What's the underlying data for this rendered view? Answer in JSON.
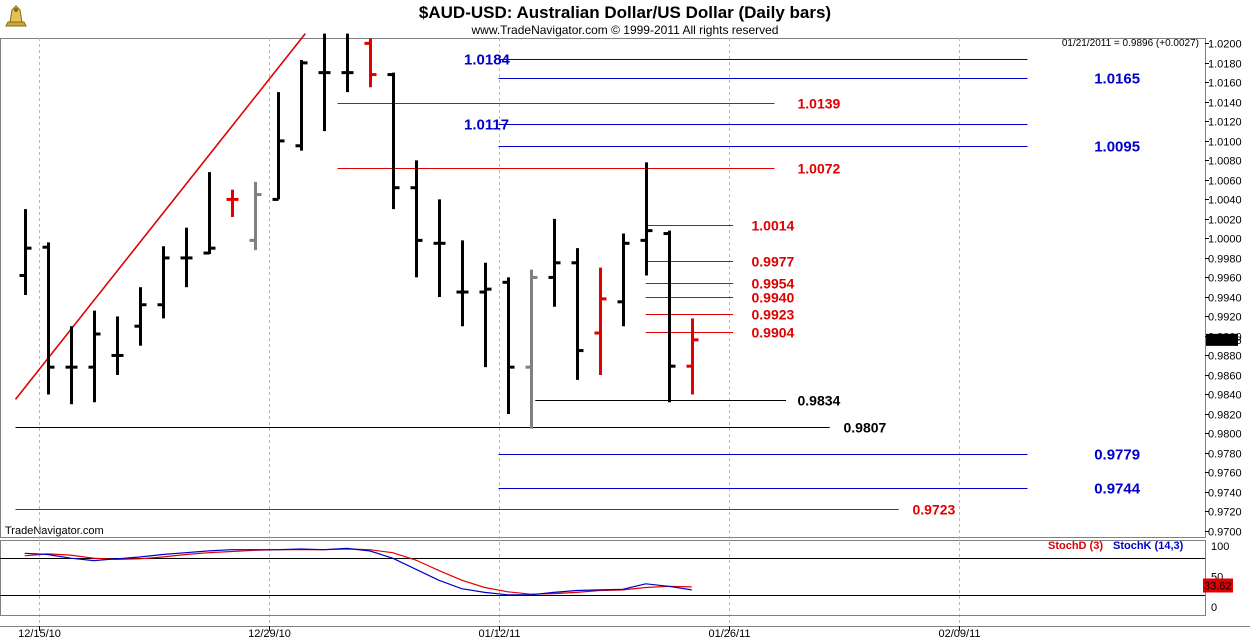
{
  "chart_data": {
    "type": "ohlc",
    "title": "$AUD-USD:  Australian Dollar/US Dollar  (Daily bars)",
    "subtitle": "www.TradeNavigator.com © 1999-2011 All rights reserved",
    "readout": "01/21/2011 = 0.9896 (+0.0027)",
    "watermark": "TradeNavigator.com",
    "last_price_label": "0.9896",
    "last_price": 0.9896,
    "ylim": [
      0.97,
      1.0205
    ],
    "yticks": [
      0.97,
      0.972,
      0.974,
      0.976,
      0.978,
      0.98,
      0.982,
      0.984,
      0.986,
      0.988,
      0.99,
      0.992,
      0.994,
      0.996,
      0.998,
      1.0,
      1.002,
      1.004,
      1.006,
      1.008,
      1.01,
      1.012,
      1.014,
      1.016,
      1.018,
      1.02
    ],
    "ytick_labels": [
      "0.9700",
      "0.9720",
      "0.9740",
      "0.9760",
      "0.9780",
      "0.9800",
      "0.9820",
      "0.9840",
      "0.9860",
      "0.9880",
      "0.9900",
      "0.9920",
      "0.9940",
      "0.9960",
      "0.9980",
      "1.0000",
      "1.0020",
      "1.0040",
      "1.0060",
      "1.0080",
      "1.0100",
      "1.0120",
      "1.0140",
      "1.0160",
      "1.0180",
      "1.0200"
    ],
    "x_range": [
      -1,
      59
    ],
    "date_ticks": [
      {
        "index": 0,
        "label": "12/15/10"
      },
      {
        "index": 10,
        "label": "12/29/10"
      },
      {
        "index": 20,
        "label": "01/12/11"
      },
      {
        "index": 30,
        "label": "01/26/11"
      },
      {
        "index": 40,
        "label": "02/09/11"
      }
    ],
    "bars": [
      {
        "i": -0.6,
        "o": 0.9962,
        "h": 1.003,
        "l": 0.9942,
        "c": 0.999,
        "color": "#000000"
      },
      {
        "i": 0.4,
        "o": 0.9991,
        "h": 0.9996,
        "l": 0.984,
        "c": 0.9868,
        "color": "#000000"
      },
      {
        "i": 1.4,
        "o": 0.9868,
        "h": 0.991,
        "l": 0.983,
        "c": 0.9868,
        "color": "#000000"
      },
      {
        "i": 2.4,
        "o": 0.9868,
        "h": 0.9926,
        "l": 0.9832,
        "c": 0.9902,
        "color": "#000000"
      },
      {
        "i": 3.4,
        "o": 0.988,
        "h": 0.992,
        "l": 0.986,
        "c": 0.988,
        "color": "#000000"
      },
      {
        "i": 4.4,
        "o": 0.991,
        "h": 0.995,
        "l": 0.989,
        "c": 0.9932,
        "color": "#000000"
      },
      {
        "i": 5.4,
        "o": 0.9932,
        "h": 0.9992,
        "l": 0.9918,
        "c": 0.998,
        "color": "#000000"
      },
      {
        "i": 6.4,
        "o": 0.998,
        "h": 1.0011,
        "l": 0.995,
        "c": 0.998,
        "color": "#000000"
      },
      {
        "i": 7.4,
        "o": 0.9985,
        "h": 1.0068,
        "l": 0.9984,
        "c": 0.999,
        "color": "#000000"
      },
      {
        "i": 8.4,
        "o": 1.004,
        "h": 1.005,
        "l": 1.0022,
        "c": 1.004,
        "color": "#e00000"
      },
      {
        "i": 9.4,
        "o": 0.9998,
        "h": 1.0058,
        "l": 0.9988,
        "c": 1.0045,
        "color": "#808080"
      },
      {
        "i": 10.4,
        "o": 1.004,
        "h": 1.015,
        "l": 1.004,
        "c": 1.01,
        "color": "#000000"
      },
      {
        "i": 11.4,
        "o": 1.0095,
        "h": 1.0183,
        "l": 1.009,
        "c": 1.018,
        "color": "#000000"
      },
      {
        "i": 12.4,
        "o": 1.017,
        "h": 1.021,
        "l": 1.011,
        "c": 1.017,
        "color": "#000000"
      },
      {
        "i": 13.4,
        "o": 1.017,
        "h": 1.021,
        "l": 1.015,
        "c": 1.017,
        "color": "#000000"
      },
      {
        "i": 14.4,
        "o": 1.02,
        "h": 1.0205,
        "l": 1.0155,
        "c": 1.0168,
        "color": "#e00000"
      },
      {
        "i": 15.4,
        "o": 1.0168,
        "h": 1.017,
        "l": 1.003,
        "c": 1.0052,
        "color": "#000000"
      },
      {
        "i": 16.4,
        "o": 1.0052,
        "h": 1.008,
        "l": 0.996,
        "c": 0.9998,
        "color": "#000000"
      },
      {
        "i": 17.4,
        "o": 0.9995,
        "h": 1.004,
        "l": 0.994,
        "c": 0.9995,
        "color": "#000000"
      },
      {
        "i": 18.4,
        "o": 0.9945,
        "h": 0.9998,
        "l": 0.991,
        "c": 0.9945,
        "color": "#000000"
      },
      {
        "i": 19.4,
        "o": 0.9945,
        "h": 0.9975,
        "l": 0.9868,
        "c": 0.9948,
        "color": "#000000"
      },
      {
        "i": 20.4,
        "o": 0.9955,
        "h": 0.996,
        "l": 0.982,
        "c": 0.9868,
        "color": "#000000"
      },
      {
        "i": 21.4,
        "o": 0.9868,
        "h": 0.9968,
        "l": 0.9805,
        "c": 0.996,
        "color": "#808080"
      },
      {
        "i": 22.4,
        "o": 0.996,
        "h": 1.002,
        "l": 0.993,
        "c": 0.9975,
        "color": "#000000"
      },
      {
        "i": 23.4,
        "o": 0.9975,
        "h": 0.999,
        "l": 0.9855,
        "c": 0.9885,
        "color": "#000000"
      },
      {
        "i": 24.4,
        "o": 0.9903,
        "h": 0.997,
        "l": 0.986,
        "c": 0.9938,
        "color": "#e00000"
      },
      {
        "i": 25.4,
        "o": 0.9935,
        "h": 1.0005,
        "l": 0.991,
        "c": 0.9995,
        "color": "#000000"
      },
      {
        "i": 26.4,
        "o": 0.9998,
        "h": 1.0078,
        "l": 0.9962,
        "c": 1.0008,
        "color": "#000000"
      },
      {
        "i": 27.4,
        "o": 1.0005,
        "h": 1.0008,
        "l": 0.9832,
        "c": 0.9869,
        "color": "#000000"
      },
      {
        "i": 28.4,
        "o": 0.9869,
        "h": 0.9918,
        "l": 0.984,
        "c": 0.9896,
        "color": "#e00000"
      }
    ],
    "levels": [
      {
        "value": 1.0184,
        "label": "1.0184",
        "color": "#0000cc",
        "x1": 20.0,
        "x2": 43.0,
        "label_side": "left",
        "label_x": 18.5
      },
      {
        "value": 1.0165,
        "label": "1.0165",
        "color": "#0000cc",
        "x1": 20.0,
        "x2": 43.0,
        "label_side": "right",
        "label_x": 45.9
      },
      {
        "value": 1.0139,
        "label": "1.0139",
        "color": "#e00000",
        "x1": 13.0,
        "x2": 32.0,
        "label_side": "right",
        "label_x": 33.0
      },
      {
        "value": 1.0117,
        "label": "1.0117",
        "color": "#0000cc",
        "x1": 20.0,
        "x2": 43.0,
        "label_side": "left",
        "label_x": 18.5
      },
      {
        "value": 1.0095,
        "label": "1.0095",
        "color": "#0000cc",
        "x1": 20.0,
        "x2": 43.0,
        "label_side": "right",
        "label_x": 45.9
      },
      {
        "value": 1.0072,
        "label": "1.0072",
        "color": "#e00000",
        "x1": 13.0,
        "x2": 32.0,
        "label_side": "right",
        "label_x": 33.0
      },
      {
        "value": 1.0014,
        "label": "1.0014",
        "color": "#e00000",
        "x1": 26.4,
        "x2": 30.2,
        "label_side": "right",
        "label_x": 31.0
      },
      {
        "value": 0.9977,
        "label": "0.9977",
        "color": "#e00000",
        "x1": 26.4,
        "x2": 30.2,
        "label_side": "right",
        "label_x": 31.0
      },
      {
        "value": 0.9954,
        "label": "0.9954",
        "color": "#e00000",
        "x1": 26.4,
        "x2": 30.2,
        "label_side": "right",
        "label_x": 31.0
      },
      {
        "value": 0.994,
        "label": "0.9940",
        "color": "#e00000",
        "x1": 26.4,
        "x2": 30.2,
        "label_side": "right",
        "label_x": 31.0
      },
      {
        "value": 0.9923,
        "label": "0.9923",
        "color": "#e00000",
        "x1": 26.4,
        "x2": 30.2,
        "label_side": "right",
        "label_x": 31.0
      },
      {
        "value": 0.9904,
        "label": "0.9904",
        "color": "#e00000",
        "x1": 26.4,
        "x2": 30.2,
        "label_side": "right",
        "label_x": 31.0
      },
      {
        "value": 0.9834,
        "label": "0.9834",
        "color": "#000000",
        "x1": 21.6,
        "x2": 32.5,
        "label_side": "right",
        "label_x": 33.0
      },
      {
        "value": 0.9807,
        "label": "0.9807",
        "color": "#000000",
        "x1": -1.0,
        "x2": 34.4,
        "label_side": "right",
        "label_x": 35.0
      },
      {
        "value": 0.9779,
        "label": "0.9779",
        "color": "#0000cc",
        "x1": 20.0,
        "x2": 43.0,
        "label_side": "right",
        "label_x": 45.9
      },
      {
        "value": 0.9744,
        "label": "0.9744",
        "color": "#0000cc",
        "x1": 20.0,
        "x2": 43.0,
        "label_side": "right",
        "label_x": 45.9
      },
      {
        "value": 0.9723,
        "label": "0.9723",
        "color": "#e00000",
        "x1": -1.0,
        "x2": 37.4,
        "label_side": "right",
        "label_x": 38.0
      }
    ],
    "trendline": {
      "color": "#e00000",
      "p1": {
        "i": -1.0,
        "v": 0.9835
      },
      "p2": {
        "i": 11.6,
        "v": 1.021
      }
    },
    "indicator": {
      "legend": [
        {
          "label": "StochD (3)",
          "color": "#e00000"
        },
        {
          "label": "StochK (14,3)",
          "color": "#0000cc"
        }
      ],
      "ylim": [
        0,
        100
      ],
      "yticks": [
        {
          "value": 100,
          "label": "100"
        },
        {
          "value": 50,
          "label": "50"
        },
        {
          "value": 0,
          "label": "0"
        }
      ],
      "levels": [
        80,
        20
      ],
      "last_label": "33.62",
      "last_value": 33.62,
      "stochK": [
        {
          "i": -0.6,
          "v": 88
        },
        {
          "i": 0.4,
          "v": 86
        },
        {
          "i": 1.4,
          "v": 80
        },
        {
          "i": 2.4,
          "v": 76
        },
        {
          "i": 3.4,
          "v": 79
        },
        {
          "i": 4.4,
          "v": 82
        },
        {
          "i": 5.4,
          "v": 86
        },
        {
          "i": 6.4,
          "v": 89
        },
        {
          "i": 7.4,
          "v": 92
        },
        {
          "i": 8.4,
          "v": 94
        },
        {
          "i": 9.4,
          "v": 94
        },
        {
          "i": 10.4,
          "v": 94
        },
        {
          "i": 11.4,
          "v": 95
        },
        {
          "i": 12.4,
          "v": 94
        },
        {
          "i": 13.4,
          "v": 96
        },
        {
          "i": 14.4,
          "v": 92
        },
        {
          "i": 15.4,
          "v": 80
        },
        {
          "i": 16.4,
          "v": 62
        },
        {
          "i": 17.4,
          "v": 44
        },
        {
          "i": 18.4,
          "v": 30
        },
        {
          "i": 19.4,
          "v": 24
        },
        {
          "i": 20.4,
          "v": 20
        },
        {
          "i": 21.4,
          "v": 20
        },
        {
          "i": 22.4,
          "v": 24
        },
        {
          "i": 23.4,
          "v": 27
        },
        {
          "i": 24.4,
          "v": 28
        },
        {
          "i": 25.4,
          "v": 29
        },
        {
          "i": 26.4,
          "v": 38
        },
        {
          "i": 27.4,
          "v": 34
        },
        {
          "i": 28.4,
          "v": 28
        }
      ],
      "stochD": [
        {
          "i": -0.6,
          "v": 84
        },
        {
          "i": 0.4,
          "v": 87
        },
        {
          "i": 1.4,
          "v": 85
        },
        {
          "i": 2.4,
          "v": 80
        },
        {
          "i": 3.4,
          "v": 78
        },
        {
          "i": 4.4,
          "v": 79
        },
        {
          "i": 5.4,
          "v": 82
        },
        {
          "i": 6.4,
          "v": 86
        },
        {
          "i": 7.4,
          "v": 89
        },
        {
          "i": 8.4,
          "v": 91
        },
        {
          "i": 9.4,
          "v": 93
        },
        {
          "i": 10.4,
          "v": 94
        },
        {
          "i": 11.4,
          "v": 94
        },
        {
          "i": 12.4,
          "v": 94
        },
        {
          "i": 13.4,
          "v": 95
        },
        {
          "i": 14.4,
          "v": 94
        },
        {
          "i": 15.4,
          "v": 89
        },
        {
          "i": 16.4,
          "v": 77
        },
        {
          "i": 17.4,
          "v": 60
        },
        {
          "i": 18.4,
          "v": 44
        },
        {
          "i": 19.4,
          "v": 32
        },
        {
          "i": 20.4,
          "v": 25
        },
        {
          "i": 21.4,
          "v": 21
        },
        {
          "i": 22.4,
          "v": 22
        },
        {
          "i": 23.4,
          "v": 24
        },
        {
          "i": 24.4,
          "v": 27
        },
        {
          "i": 25.4,
          "v": 28
        },
        {
          "i": 26.4,
          "v": 32
        },
        {
          "i": 27.4,
          "v": 34
        },
        {
          "i": 28.4,
          "v": 33
        }
      ]
    }
  }
}
